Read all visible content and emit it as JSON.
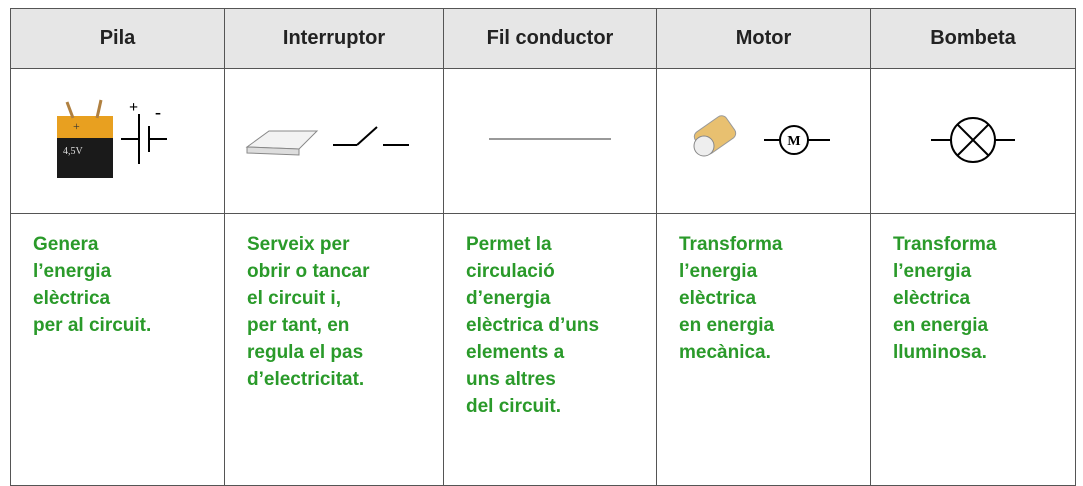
{
  "table": {
    "header": [
      "Pila",
      "Interruptor",
      "Fil conductor",
      "Motor",
      "Bombeta"
    ],
    "symbols": {
      "battery_voltage": "4,5V",
      "plus": "+",
      "minus": "-",
      "motor": "M"
    },
    "descriptions": [
      [
        "Genera",
        "l’energia",
        "elèctrica",
        "per al circuit."
      ],
      [
        "Serveix per",
        "obrir o tancar",
        "el circuit i,",
        "per tant, en",
        "regula el pas",
        "d’electricitat."
      ],
      [
        "Permet la",
        "circulació",
        "d’energia",
        "elèctrica d’uns",
        "elements a",
        "uns altres",
        "del circuit."
      ],
      [
        "Transforma",
        "l’energia",
        "elèctrica",
        "en energia",
        "mecànica."
      ],
      [
        "Transforma",
        "l’energia",
        "elèctrica",
        "en energia",
        "lluminosa."
      ]
    ]
  }
}
